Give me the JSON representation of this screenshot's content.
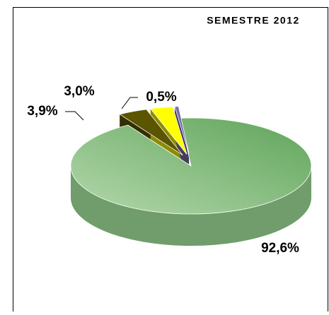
{
  "chart_data": {
    "type": "pie",
    "title": "SEMESTRE 2012",
    "categories": [
      null,
      null,
      null,
      null
    ],
    "values": [
      92.6,
      3.9,
      3.0,
      0.5
    ],
    "value_labels": [
      "92,6%",
      "3,9%",
      "3,0%",
      "0,5%"
    ],
    "colors": [
      "#8cc486",
      "#5c5500",
      "#ffff00",
      "#7a6eaa"
    ],
    "three_d": true
  }
}
